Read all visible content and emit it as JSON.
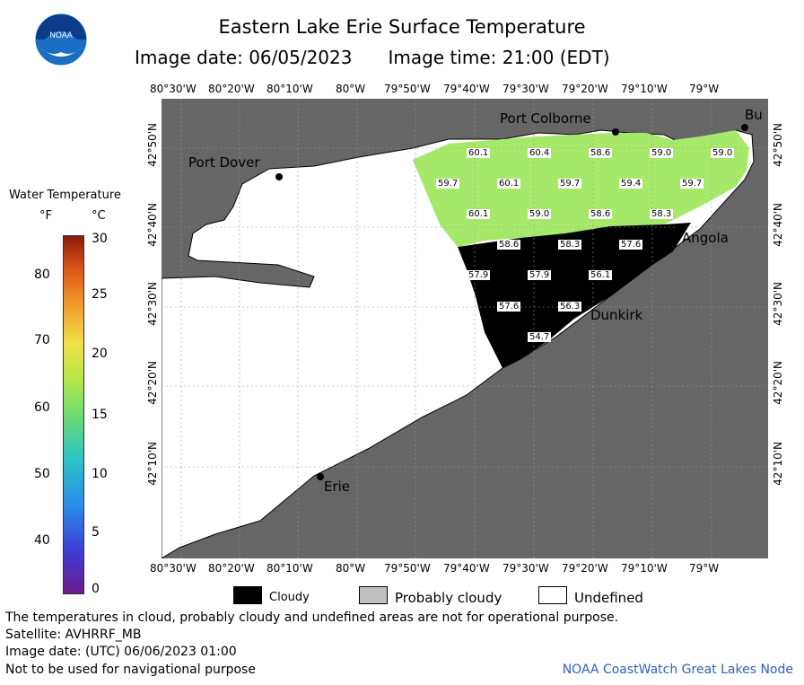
{
  "header": {
    "title": "Eastern Lake Erie Surface Temperature",
    "image_date": "Image date: 06/05/2023",
    "image_time": "Image time: 21:00 (EDT)",
    "logo_text": "NOAA"
  },
  "axes": {
    "lon_labels": [
      "80°30'W",
      "80°20'W",
      "80°10'W",
      "80°W",
      "79°50'W",
      "79°40'W",
      "79°30'W",
      "79°20'W",
      "79°10'W",
      "79°W"
    ],
    "lat_labels": [
      "42°50'N",
      "42°40'N",
      "42°30'N",
      "42°20'N",
      "42°10'N"
    ]
  },
  "cities": {
    "port_colborne": "Port Colborne",
    "buffalo": "Bu",
    "port_dover": "Port Dover",
    "angola": "Angola",
    "dunkirk": "Dunkirk",
    "erie": "Erie"
  },
  "temperatures": {
    "t1": "60.1",
    "t2": "60.4",
    "t3": "58.6",
    "t4": "59.0",
    "t5": "59.0",
    "t6": "59.7",
    "t7": "60.1",
    "t8": "59.7",
    "t9": "59.4",
    "t10": "59.7",
    "t11": "60.1",
    "t12": "59.0",
    "t13": "58.6",
    "t14": "58.3",
    "t15": "58.6",
    "t16": "58.3",
    "t17": "57.6",
    "t18": "57.9",
    "t19": "57.9",
    "t20": "56.1",
    "t21": "57.6",
    "t22": "56.3",
    "t23": "54.7"
  },
  "scale": {
    "title": "Water Temperature",
    "unit_f": "°F",
    "unit_c": "°C",
    "f_ticks": [
      "80",
      "70",
      "60",
      "50",
      "40"
    ],
    "c_ticks": [
      "30",
      "25",
      "20",
      "15",
      "10",
      "5",
      "0"
    ]
  },
  "legend": {
    "cloudy": "Cloudy",
    "probably_cloudy": "Probably cloudy",
    "undefined": "Undefined",
    "cloudy_color": "#000000",
    "probably_cloudy_color": "#c0c0c0",
    "undefined_color": "#ffffff"
  },
  "notes": {
    "line1": "The temperatures in cloud, probably cloudy and undefined areas are not for operational purpose.",
    "line2": "Satellite: AVHRRF_MB",
    "line3": "Image date: (UTC) 06/06/2023  01:00",
    "line4": "Not to be used for navigational purpose",
    "credit": "NOAA CoastWatch Great Lakes Node"
  },
  "colors": {
    "land": "#666666",
    "lake_undefined": "#ffffff",
    "warm_water": "#a6e86a",
    "cool_water": "#9de37a",
    "cloud": "#000000"
  }
}
